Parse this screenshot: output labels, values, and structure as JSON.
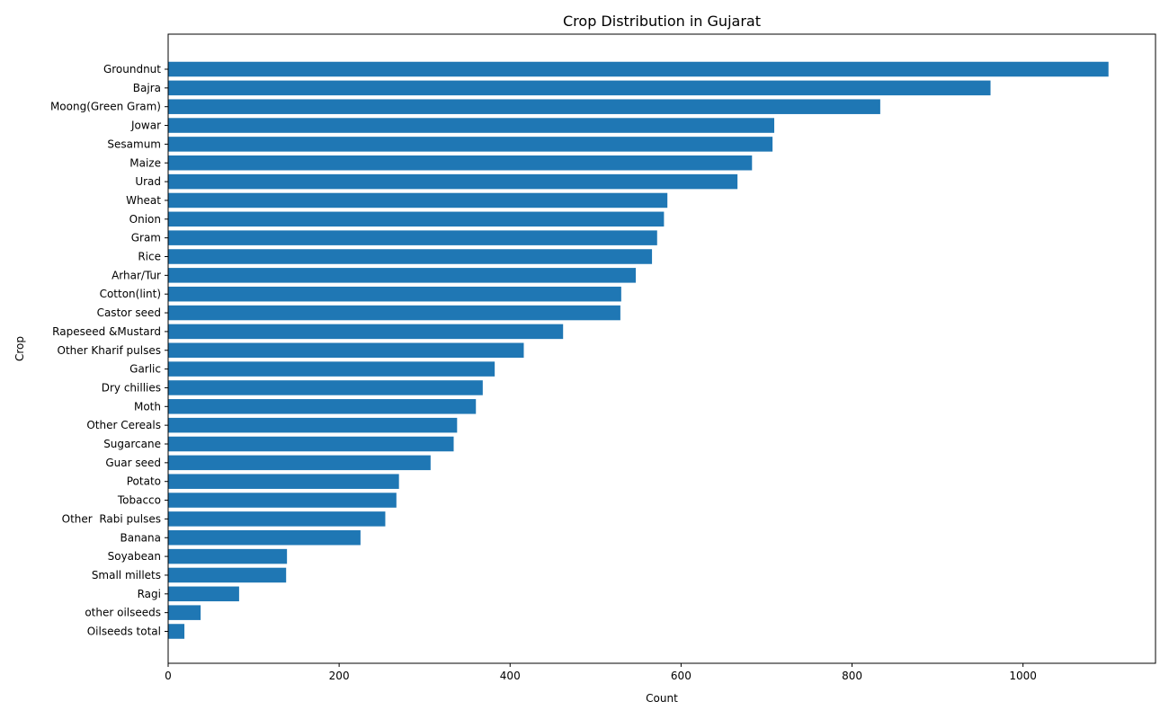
{
  "chart_data": {
    "type": "bar",
    "orientation": "horizontal",
    "title": "Crop Distribution in Gujarat",
    "xlabel": "Count",
    "ylabel": "Crop",
    "xlim": [
      0,
      1155
    ],
    "xticks": [
      0,
      200,
      400,
      600,
      800,
      1000
    ],
    "bar_color": "#1f77b4",
    "grid": false,
    "categories": [
      "Groundnut",
      "Bajra",
      "Moong(Green Gram)",
      "Jowar",
      "Sesamum",
      "Maize",
      "Urad",
      "Wheat",
      "Onion",
      "Gram",
      "Rice",
      "Arhar/Tur",
      "Cotton(lint)",
      "Castor seed",
      "Rapeseed &Mustard",
      "Other Kharif pulses",
      "Garlic",
      "Dry chillies",
      "Moth",
      "Other Cereals",
      "Sugarcane",
      "Guar seed",
      "Potato",
      "Tobacco",
      "Other  Rabi pulses",
      "Banana",
      "Soyabean",
      "Small millets",
      "Ragi",
      "other oilseeds",
      "Oilseeds total"
    ],
    "values": [
      1100,
      962,
      833,
      709,
      707,
      683,
      666,
      584,
      580,
      572,
      566,
      547,
      530,
      529,
      462,
      416,
      382,
      368,
      360,
      338,
      334,
      307,
      270,
      267,
      254,
      225,
      139,
      138,
      83,
      38,
      19
    ]
  }
}
